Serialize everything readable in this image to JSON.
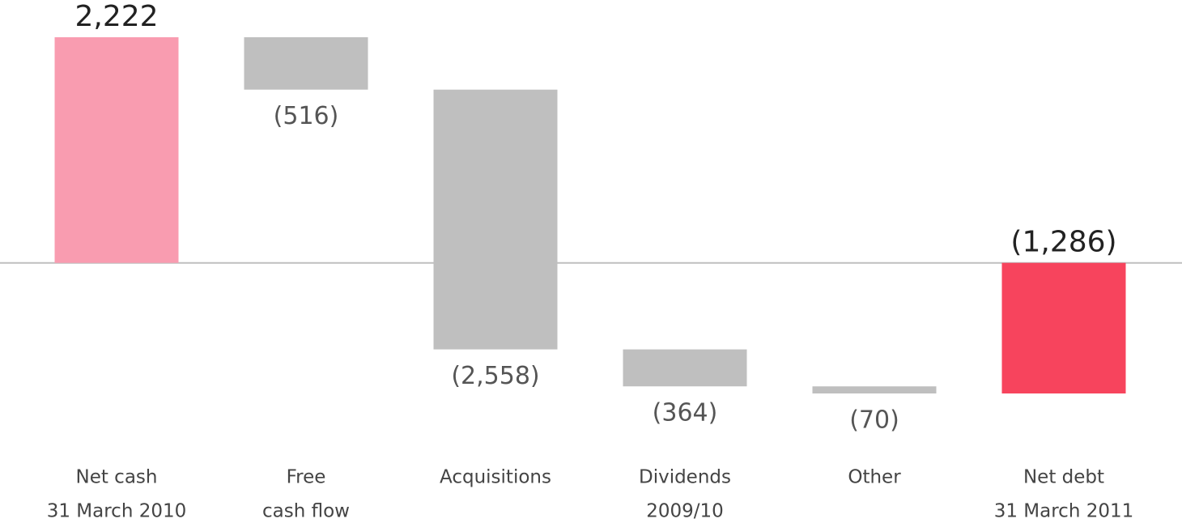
{
  "chart_data": {
    "type": "waterfall",
    "categories": [
      [
        "Net cash",
        "31 March 2010"
      ],
      [
        "Free",
        "cash flow"
      ],
      [
        "Acquisitions"
      ],
      [
        "Dividends",
        "2009/10"
      ],
      [
        "Other"
      ],
      [
        "Net debt",
        "31 March 2011"
      ]
    ],
    "values": [
      2222,
      -516,
      -2558,
      -364,
      -70,
      -1286
    ],
    "value_labels": [
      "2,222",
      "(516)",
      "(2,558)",
      "(364)",
      "(70)",
      "(1,286)"
    ],
    "colors": [
      "#f99cb0",
      "#bfbfbf",
      "#bfbfbf",
      "#bfbfbf",
      "#bfbfbf",
      "#f7445d"
    ]
  }
}
